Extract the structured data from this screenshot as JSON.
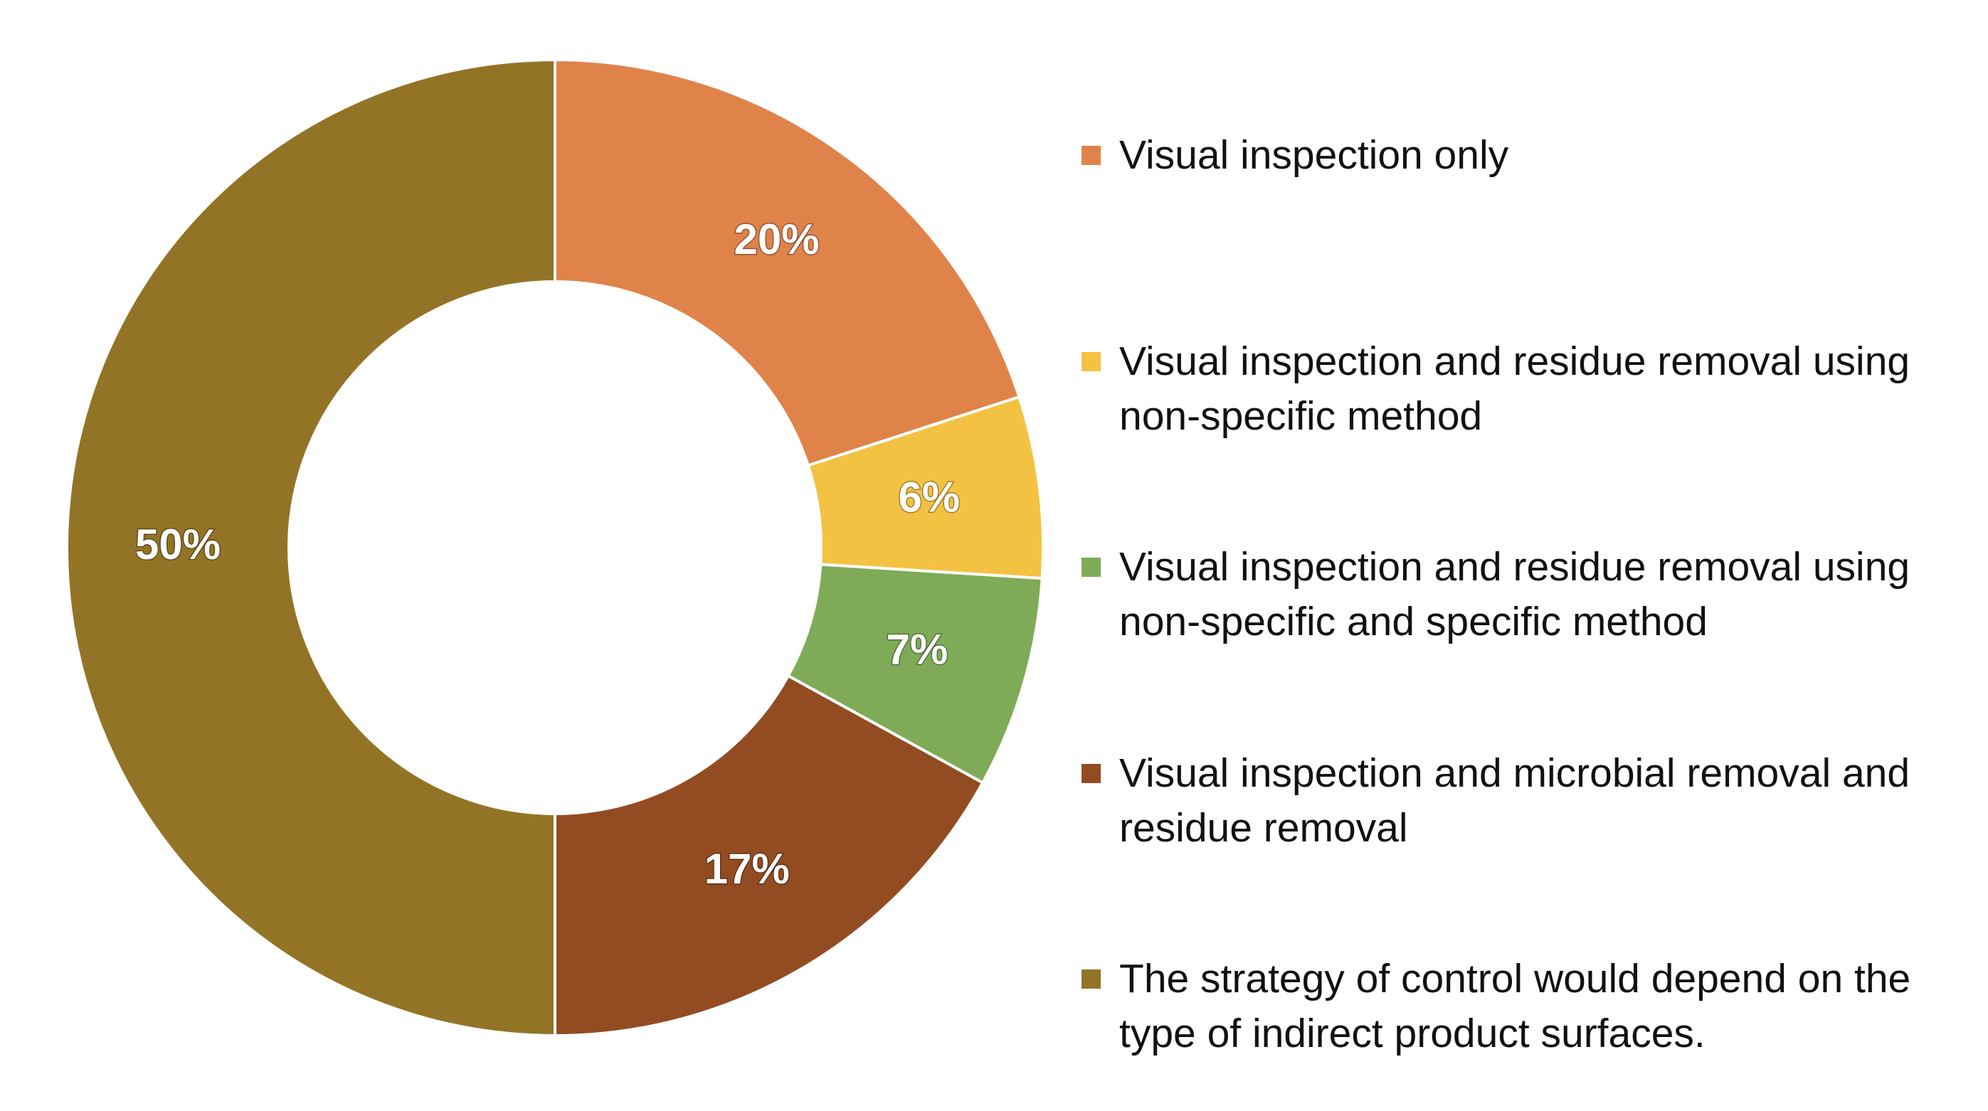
{
  "chart_data": {
    "type": "donut",
    "categories": [
      "Visual inspection only",
      "Visual inspection and residue removal using non-specific method",
      "Visual inspection and residue removal using non-specific and specific method",
      "Visual inspection and microbial removal and residue removal",
      "The strategy of control would depend on the type of indirect product surfaces."
    ],
    "values": [
      20,
      6,
      7,
      17,
      50
    ],
    "value_labels": [
      "20%",
      "6%",
      "7%",
      "17%",
      "50%"
    ],
    "colors": [
      "#e0834a",
      "#f4c242",
      "#7fab58",
      "#934c22",
      "#937426"
    ],
    "legend": "right"
  }
}
